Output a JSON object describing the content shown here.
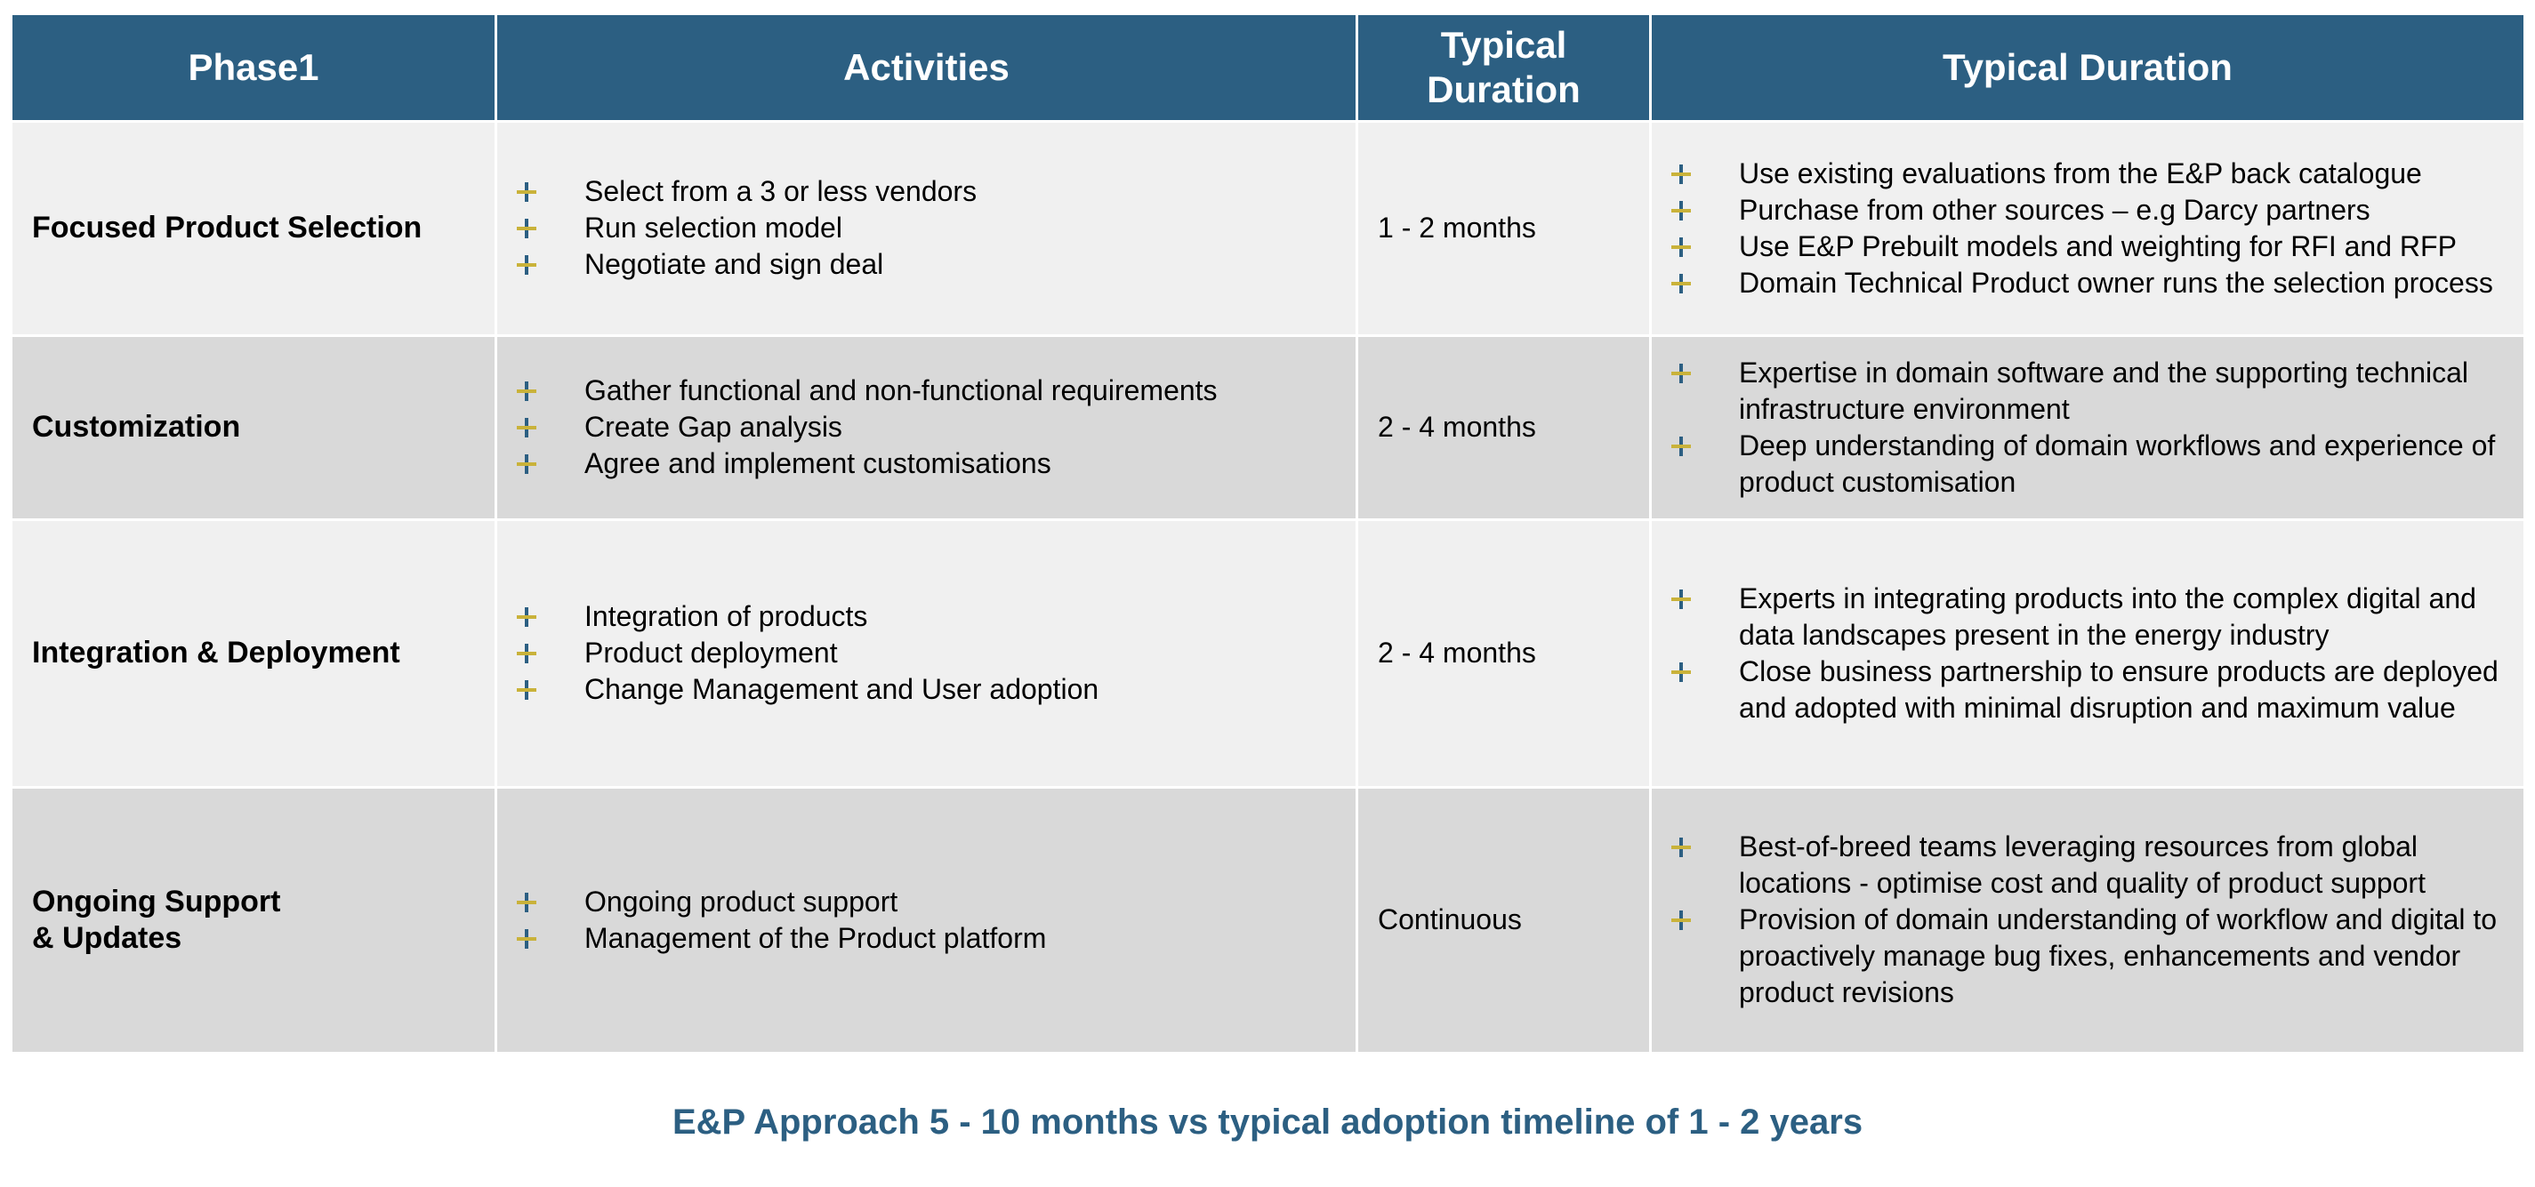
{
  "colors": {
    "header_bg": "#2c5f82",
    "row_light": "#f0f0f0",
    "row_dark": "#d9d9d9",
    "bullet_vertical": "#2c5f82",
    "bullet_horizontal": "#c9b23a",
    "footer_text": "#2c5f82"
  },
  "bullet_icon": "plus-icon",
  "headers": [
    "Phase1",
    "Activities",
    "Typical Duration",
    "Typical Duration"
  ],
  "rows": [
    {
      "phase": "Focused Product Selection",
      "activities": [
        "Select from a 3 or less vendors",
        "Run selection model",
        "Negotiate and sign deal"
      ],
      "duration": "1 - 2 months",
      "notes": [
        "Use existing evaluations from the E&P back catalogue",
        "Purchase from other sources – e.g Darcy partners",
        "Use E&P Prebuilt models and weighting for RFI and RFP",
        "Domain Technical Product owner runs the selection process"
      ]
    },
    {
      "phase": "Customization",
      "activities": [
        "Gather functional and non-functional requirements",
        "Create Gap analysis",
        "Agree and implement customisations"
      ],
      "duration": "2 - 4 months",
      "notes": [
        "Expertise in domain software and the supporting technical infrastructure environment",
        "Deep understanding of domain workflows and experience of product customisation"
      ]
    },
    {
      "phase": "Integration & Deployment",
      "activities": [
        "Integration of products",
        "Product deployment",
        "Change Management and User adoption"
      ],
      "duration": "2 - 4 months",
      "notes": [
        "Experts in integrating products into the complex digital and data landscapes present in the energy industry",
        "Close business partnership to ensure products are deployed and adopted with minimal disruption and maximum value"
      ]
    },
    {
      "phase_line1": "Ongoing Support",
      "phase_line2": "& Updates",
      "activities": [
        "Ongoing product support",
        "Management of the Product platform"
      ],
      "duration": "Continuous",
      "notes": [
        "Best-of-breed teams leveraging resources from global locations - optimise cost and quality of product support",
        "Provision of domain understanding of workflow and digital to proactively manage bug fixes, enhancements and vendor product revisions"
      ]
    }
  ],
  "footer": "E&P Approach 5 - 10 months vs typical adoption timeline of 1 - 2 years"
}
